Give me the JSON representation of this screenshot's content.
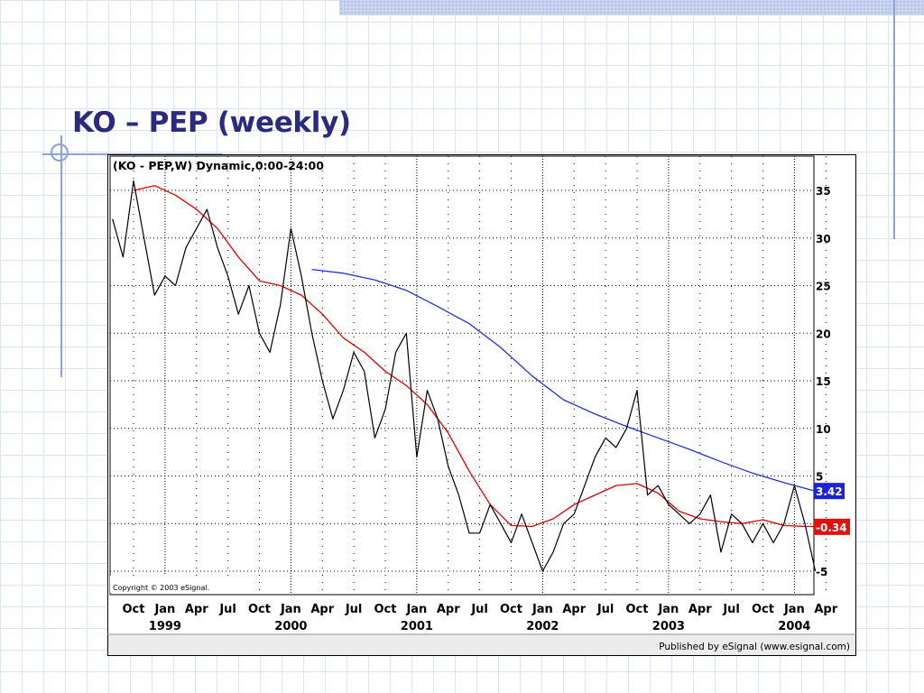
{
  "slide": {
    "title": "KO – PEP (weekly)"
  },
  "chart_data": {
    "type": "line",
    "title": "(KO - PEP,W) Dynamic,0:00-24:00",
    "copyright": "Copyright © 2003 eSignal.",
    "published_by": "Published by eSignal (www.esignal.com)",
    "ylim": [
      -7,
      37
    ],
    "y_ticks": [
      35,
      30,
      25,
      20,
      15,
      10,
      5,
      0,
      -5
    ],
    "y_tick_labels": [
      "35",
      "30",
      "25",
      "20",
      "15",
      "10",
      "5",
      "",
      "-5"
    ],
    "x_tick_months": [
      "Oct",
      "Jan",
      "Apr",
      "Jul",
      "Oct",
      "Jan",
      "Apr",
      "Jul",
      "Oct",
      "Jan",
      "Apr",
      "Jul",
      "Oct",
      "Jan",
      "Apr",
      "Jul",
      "Oct",
      "Jan",
      "Apr",
      "Jul",
      "Oct",
      "Jan",
      "Apr"
    ],
    "x_tick_years": [
      "1999",
      "2000",
      "2001",
      "2002",
      "2003",
      "2004"
    ],
    "x_tick_dates": [
      "1998-10",
      "1999-01",
      "1999-04",
      "1999-07",
      "1999-10",
      "2000-01",
      "2000-04",
      "2000-07",
      "2000-10",
      "2001-01",
      "2001-04",
      "2001-07",
      "2001-10",
      "2002-01",
      "2002-04",
      "2002-07",
      "2002-10",
      "2003-01",
      "2003-04",
      "2003-07",
      "2003-10",
      "2004-01",
      "2004-04"
    ],
    "grid": true,
    "series": [
      {
        "color": "#000000",
        "x": [
          "1998-08",
          "1998-09",
          "1998-10",
          "1998-11",
          "1998-12",
          "1999-01",
          "1999-02",
          "1999-03",
          "1999-04",
          "1999-05",
          "1999-06",
          "1999-07",
          "1999-08",
          "1999-09",
          "1999-10",
          "1999-11",
          "1999-12",
          "2000-01",
          "2000-02",
          "2000-03",
          "2000-04",
          "2000-05",
          "2000-06",
          "2000-07",
          "2000-08",
          "2000-09",
          "2000-10",
          "2000-11",
          "2000-12",
          "2001-01",
          "2001-02",
          "2001-03",
          "2001-04",
          "2001-05",
          "2001-06",
          "2001-07",
          "2001-08",
          "2001-09",
          "2001-10",
          "2001-11",
          "2001-12",
          "2002-01",
          "2002-02",
          "2002-03",
          "2002-04",
          "2002-05",
          "2002-06",
          "2002-07",
          "2002-08",
          "2002-09",
          "2002-10",
          "2002-11",
          "2002-12",
          "2003-01",
          "2003-02",
          "2003-03",
          "2003-04",
          "2003-05",
          "2003-06",
          "2003-07",
          "2003-08",
          "2003-09",
          "2003-10",
          "2003-11",
          "2003-12",
          "2004-01",
          "2004-02",
          "2004-03"
        ],
        "values": [
          32,
          28,
          36,
          30,
          24,
          26,
          25,
          29,
          31,
          33,
          29,
          26,
          22,
          25,
          20,
          18,
          23,
          31,
          26,
          20,
          15,
          11,
          14,
          18,
          16,
          9,
          12,
          18,
          20,
          7,
          14,
          11,
          6,
          3,
          -1,
          -1,
          2,
          0,
          -2,
          1,
          -2,
          -5,
          -3,
          0,
          1,
          4,
          7,
          9,
          8,
          10,
          14,
          3,
          4,
          2,
          1,
          0,
          1,
          3,
          -3,
          1,
          0,
          -2,
          0,
          -2,
          0,
          4,
          0,
          -5
        ]
      },
      {
        "color": "#e00000",
        "x": [
          "1998-10",
          "1998-12",
          "1999-02",
          "1999-04",
          "1999-06",
          "1999-08",
          "1999-10",
          "1999-12",
          "2000-02",
          "2000-04",
          "2000-06",
          "2000-08",
          "2000-10",
          "2000-12",
          "2001-02",
          "2001-04",
          "2001-06",
          "2001-08",
          "2001-10",
          "2001-12",
          "2002-02",
          "2002-04",
          "2002-06",
          "2002-08",
          "2002-10",
          "2002-12",
          "2003-02",
          "2003-04",
          "2003-06",
          "2003-08",
          "2003-10",
          "2003-12",
          "2004-02",
          "2004-04"
        ],
        "values": [
          35,
          35.5,
          34.5,
          33,
          31,
          28,
          25.5,
          25,
          24,
          22,
          19.5,
          18,
          16,
          14.5,
          12.5,
          9.5,
          5.5,
          2,
          -0.2,
          -0.3,
          0.5,
          2,
          3,
          4,
          4.2,
          3.2,
          1.3,
          0.5,
          0.2,
          0,
          0.4,
          -0.2,
          -0.3,
          -0.34
        ]
      },
      {
        "color": "#2233dd",
        "x": [
          "2000-03",
          "2000-06",
          "2000-09",
          "2000-12",
          "2001-03",
          "2001-06",
          "2001-09",
          "2001-12",
          "2002-03",
          "2002-06",
          "2002-09",
          "2002-12",
          "2003-03",
          "2003-06",
          "2003-09",
          "2003-12",
          "2004-03"
        ],
        "values": [
          26.7,
          26.3,
          25.6,
          24.5,
          22.8,
          21,
          18.5,
          15.5,
          13,
          11.5,
          10.2,
          9,
          7.8,
          6.5,
          5.3,
          4.3,
          3.42
        ]
      }
    ],
    "last_value_labels": [
      {
        "text": "3.42",
        "value": 3.42,
        "color": "#1a24d6"
      },
      {
        "text": "-0.34",
        "value": -0.34,
        "color": "#e21010"
      }
    ]
  }
}
